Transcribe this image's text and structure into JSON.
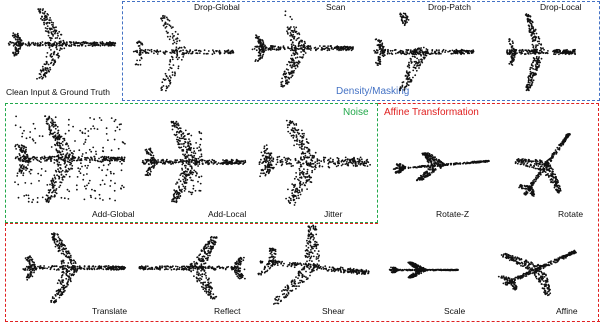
{
  "groups": {
    "density": {
      "title": "Density/Masking",
      "color": "#4472c4"
    },
    "noise": {
      "title": "Noise",
      "color": "#21a84a"
    },
    "affine": {
      "title": "Affine Transformation",
      "color": "#e02020"
    }
  },
  "cells": {
    "clean": {
      "label": "Clean Input & Ground Truth"
    },
    "drop_global": {
      "label": "Drop-Global"
    },
    "scan": {
      "label": "Scan"
    },
    "drop_patch": {
      "label": "Drop-Patch"
    },
    "drop_local": {
      "label": "Drop-Local"
    },
    "add_global": {
      "label": "Add-Global"
    },
    "add_local": {
      "label": "Add-Local"
    },
    "jitter": {
      "label": "Jitter"
    },
    "rotate_z": {
      "label": "Rotate-Z"
    },
    "rotate": {
      "label": "Rotate"
    },
    "translate": {
      "label": "Translate"
    },
    "reflect": {
      "label": "Reflect"
    },
    "shear": {
      "label": "Shear"
    },
    "scale": {
      "label": "Scale"
    },
    "affine": {
      "label": "Affine"
    }
  },
  "point_color": "#111111"
}
